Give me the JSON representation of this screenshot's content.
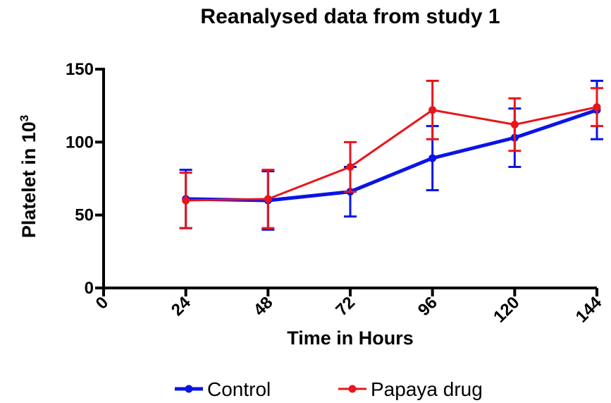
{
  "chart_data": {
    "type": "line",
    "title": "Reanalysed data from study 1",
    "xlabel": "Time in Hours",
    "ylabel": "Platelet in 10",
    "ylabel_superscript": "3",
    "xlim": [
      0,
      144
    ],
    "ylim": [
      0,
      150
    ],
    "x_ticks": [
      0,
      24,
      48,
      72,
      96,
      120,
      144
    ],
    "y_ticks": [
      0,
      50,
      100,
      150
    ],
    "grid": false,
    "legend_position": "bottom",
    "x": [
      24,
      48,
      72,
      96,
      120,
      144
    ],
    "series": [
      {
        "name": "Control",
        "color": "#0a14e6",
        "values": [
          61,
          60,
          66,
          89,
          103,
          122
        ],
        "error": [
          20,
          20,
          17,
          22,
          20,
          20
        ]
      },
      {
        "name": "Papaya drug",
        "color": "#e8151b",
        "values": [
          60,
          61,
          83,
          122,
          112,
          124
        ],
        "error": [
          19,
          20,
          17,
          20,
          18,
          13
        ]
      }
    ]
  }
}
